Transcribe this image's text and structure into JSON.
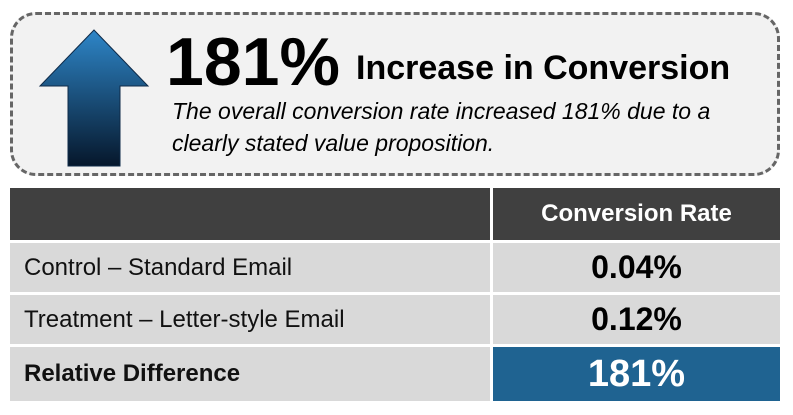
{
  "header": {
    "headline": "181%",
    "title": "Increase in Conversion",
    "description": "The overall conversion rate increased 181% due to a clearly stated value proposition."
  },
  "table": {
    "column_header": "Conversion Rate",
    "rows": [
      [
        "Control – Standard Email",
        "0.04%"
      ],
      [
        "Treatment – Letter-style Email",
        "0.12%"
      ],
      [
        "Relative Difference",
        "181%"
      ]
    ]
  }
}
